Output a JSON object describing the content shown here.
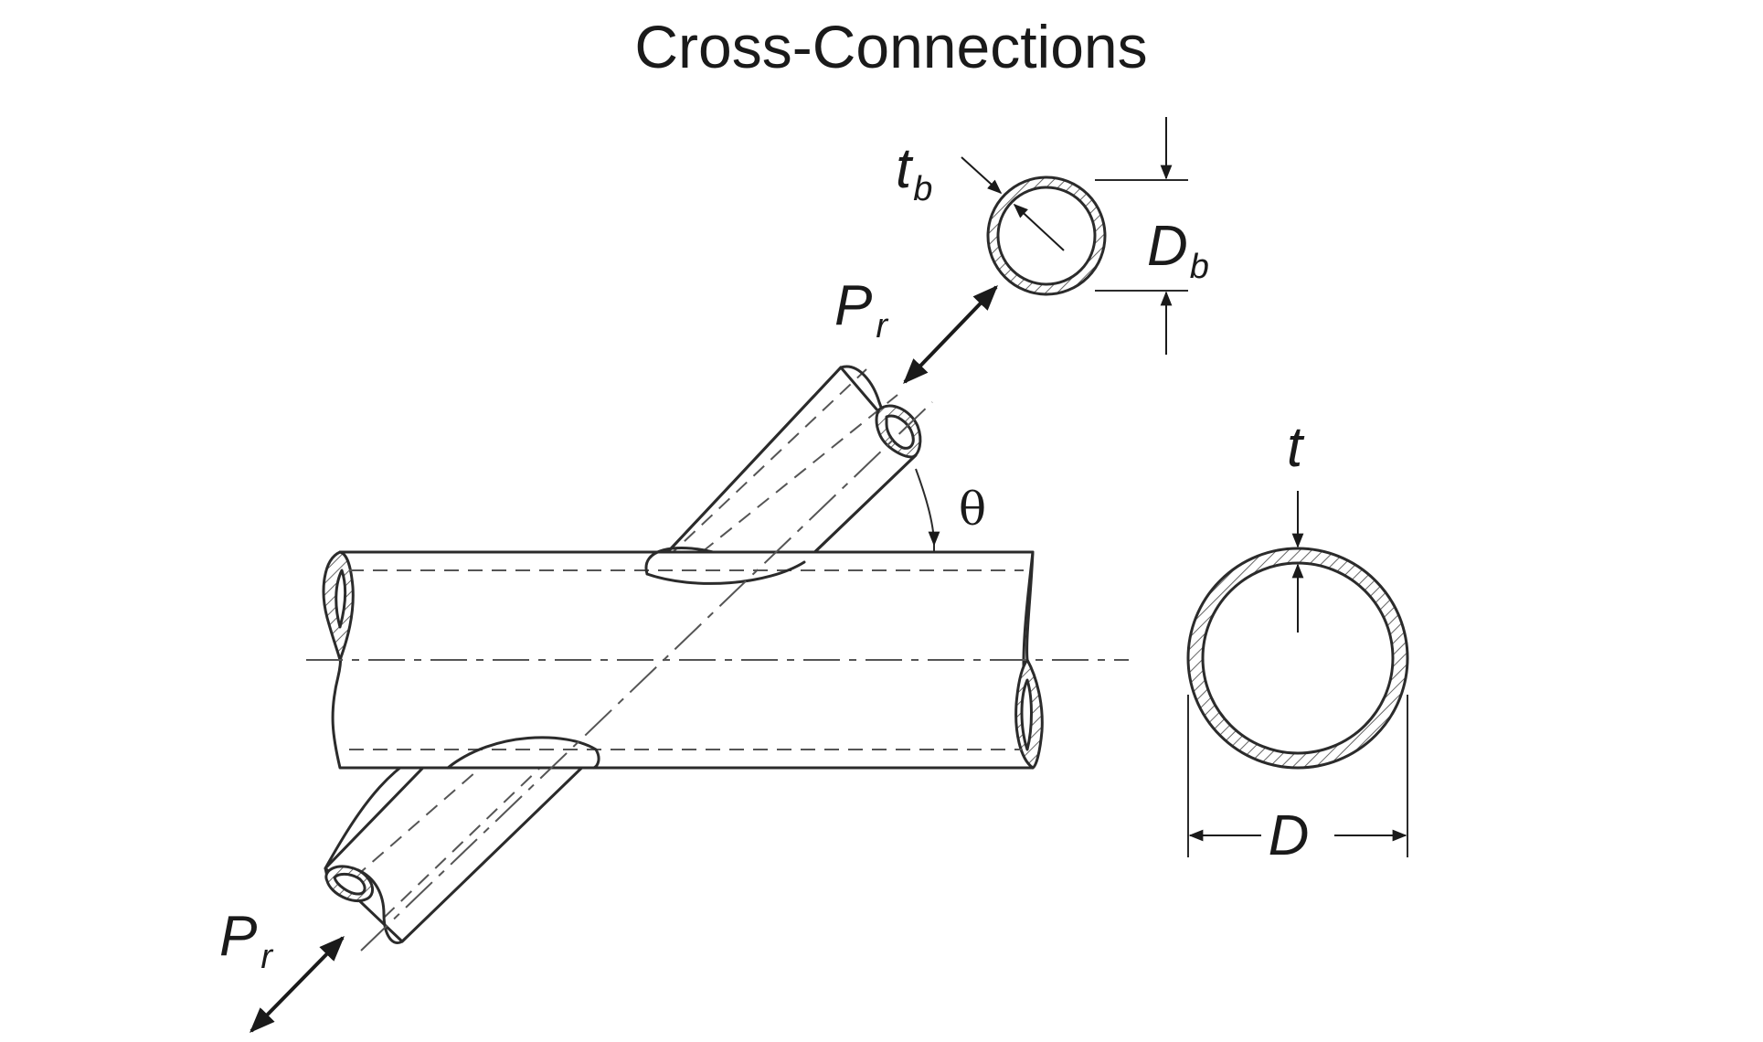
{
  "title": "Cross-Connections",
  "labels": {
    "branch_thickness": {
      "main": "t",
      "sub": "b"
    },
    "branch_diameter": {
      "main": "D",
      "sub": "b"
    },
    "load_upper": {
      "main": "P",
      "sub": "r"
    },
    "load_lower": {
      "main": "P",
      "sub": "r"
    },
    "angle": "θ",
    "chord_thickness": "t",
    "chord_diameter": "D"
  },
  "colors": {
    "line": "#2b2b2b",
    "text": "#1a1a1a",
    "background": "#ffffff"
  }
}
